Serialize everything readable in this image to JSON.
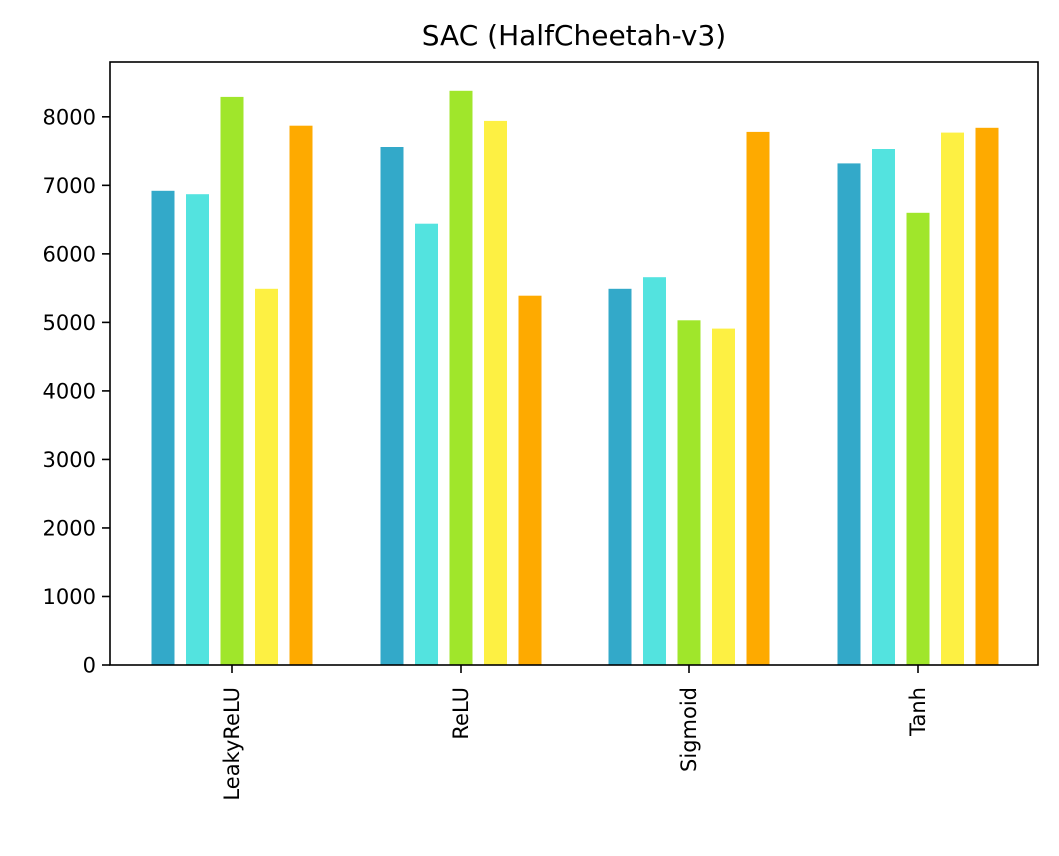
{
  "chart_data": {
    "type": "bar",
    "title": "SAC (HalfCheetah-v3)",
    "xlabel": "",
    "ylabel": "",
    "categories": [
      "LeakyReLU",
      "ReLU",
      "Sigmoid",
      "Tanh"
    ],
    "ylim": [
      0,
      8800
    ],
    "yticks": [
      0,
      1000,
      2000,
      3000,
      4000,
      5000,
      6000,
      7000,
      8000
    ],
    "ytick_labels": [
      "0",
      "1000",
      "2000",
      "3000",
      "4000",
      "5000",
      "6000",
      "7000",
      "8000"
    ],
    "grid": false,
    "legend": "none",
    "series": [
      {
        "color": "#33a9c9",
        "values": [
          6920,
          7560,
          5490,
          7320
        ]
      },
      {
        "color": "#53e3df",
        "values": [
          6870,
          6440,
          5660,
          7530
        ]
      },
      {
        "color": "#a0e62b",
        "values": [
          8290,
          8380,
          5030,
          6600
        ]
      },
      {
        "color": "#fdf043",
        "values": [
          5490,
          7940,
          4910,
          7770
        ]
      },
      {
        "color": "#feaa00",
        "values": [
          7870,
          5390,
          7780,
          7840
        ]
      }
    ]
  }
}
